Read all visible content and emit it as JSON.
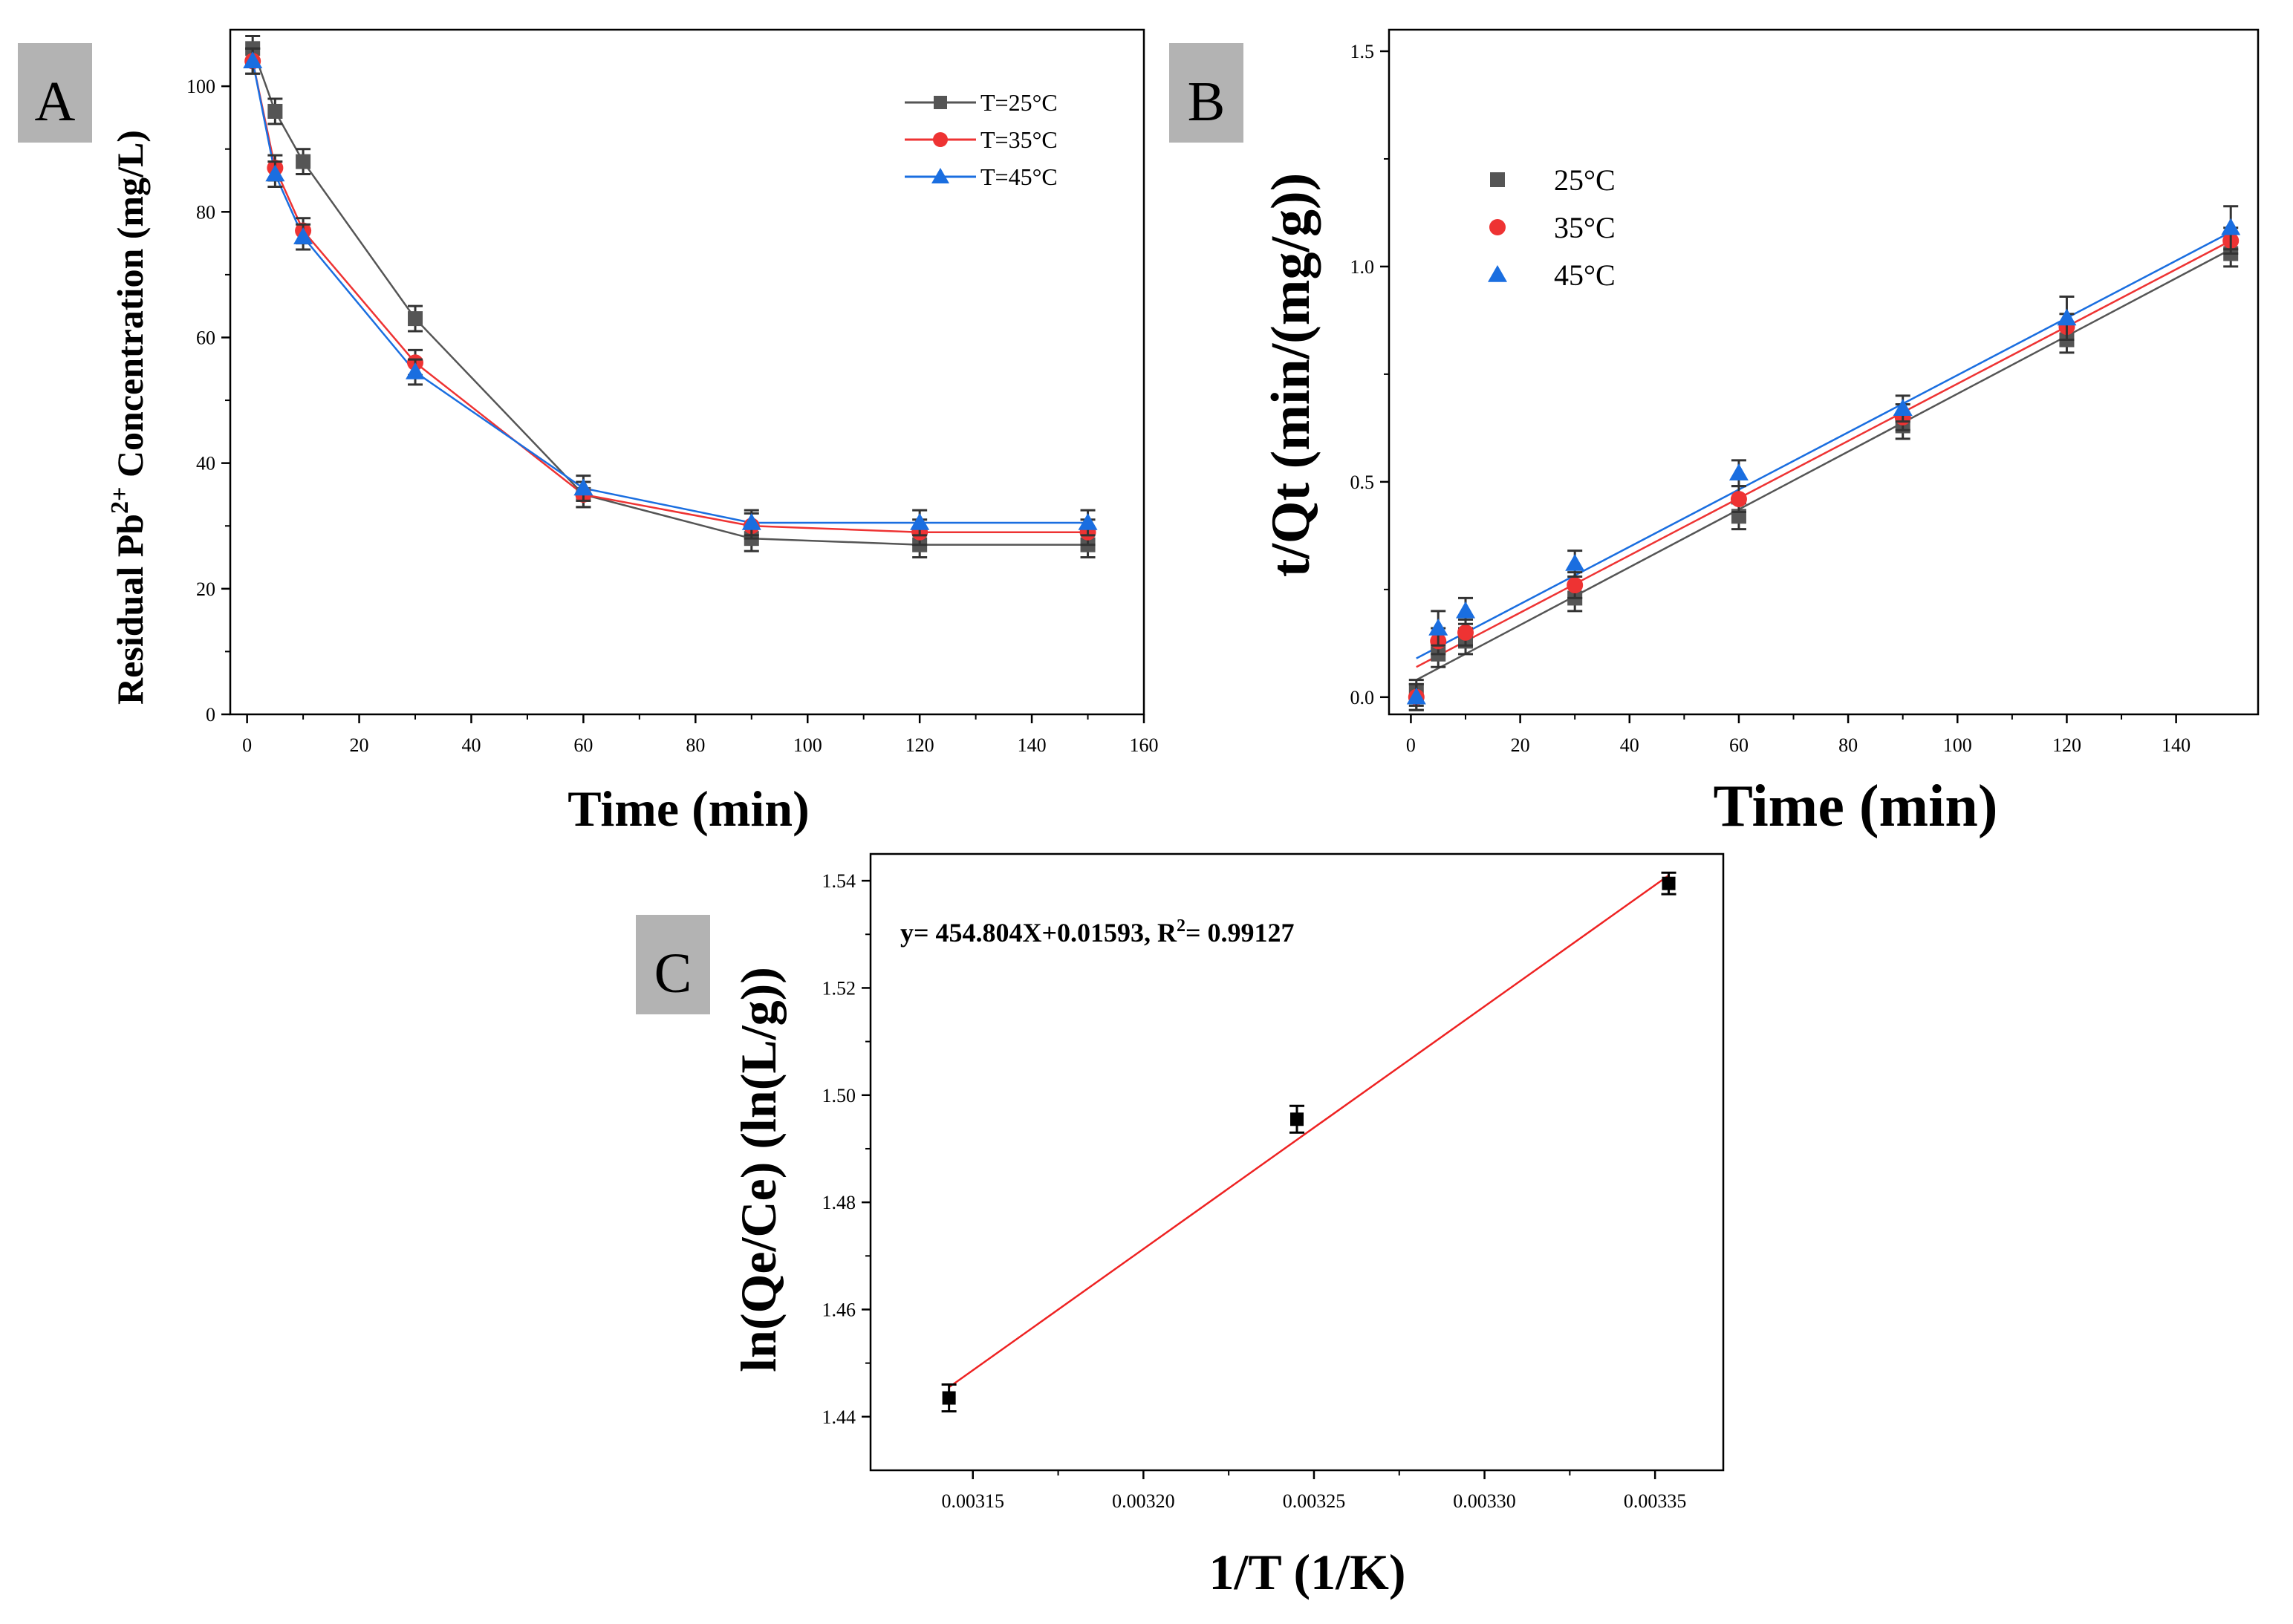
{
  "chart_data": [
    {
      "panel": "A",
      "type": "line",
      "xlabel": "Time (min)",
      "ylabel_main": "Residual Pb",
      "ylabel_sup": "2+",
      "ylabel_rest": " Concentration (mg/L)",
      "xlim": [
        -3,
        160
      ],
      "ylim": [
        0,
        109
      ],
      "xticks": [
        0,
        20,
        40,
        60,
        80,
        100,
        120,
        140,
        160
      ],
      "yticks": [
        0,
        20,
        40,
        60,
        80,
        100
      ],
      "x": [
        1,
        5,
        10,
        30,
        60,
        90,
        120,
        150
      ],
      "series": [
        {
          "name": "T=25°C",
          "color": "#555555",
          "marker": "square",
          "values": [
            106,
            96,
            88,
            63,
            35,
            28,
            27,
            27
          ],
          "errors": [
            2,
            2,
            2,
            2,
            2,
            2,
            2,
            2
          ]
        },
        {
          "name": "T=35°C",
          "color": "#ee3333",
          "marker": "circle",
          "values": [
            104,
            87,
            77,
            56,
            35,
            30,
            29,
            29
          ],
          "errors": [
            2,
            2,
            2,
            2,
            2,
            2,
            2,
            2
          ]
        },
        {
          "name": "T=45°C",
          "color": "#1a6ee0",
          "marker": "triangle",
          "values": [
            104,
            86,
            76,
            54.5,
            36,
            30.5,
            30.5,
            30.5
          ],
          "errors": [
            2,
            2,
            2,
            2,
            2,
            2,
            2,
            2
          ]
        }
      ]
    },
    {
      "panel": "B",
      "type": "scatter",
      "xlabel": "Time (min)",
      "ylabel": "t/Qt (min/(mg/g))",
      "xlim": [
        -4,
        155
      ],
      "ylim": [
        -0.04,
        1.55
      ],
      "xticks": [
        0,
        20,
        40,
        60,
        80,
        100,
        120,
        140
      ],
      "yticks": [
        "0.0",
        "0.5",
        "1.0",
        "1.5"
      ],
      "x": [
        1,
        5,
        10,
        30,
        60,
        90,
        120,
        150
      ],
      "series": [
        {
          "name": "25°C",
          "color": "#555555",
          "marker": "square",
          "values": [
            0.01,
            0.1,
            0.13,
            0.23,
            0.42,
            0.63,
            0.83,
            1.03
          ],
          "errors": [
            0.03,
            0.03,
            0.03,
            0.03,
            0.03,
            0.03,
            0.03,
            0.03
          ],
          "fit": [
            0.04,
            1.04
          ]
        },
        {
          "name": "35°C",
          "color": "#ee3333",
          "marker": "circle",
          "values": [
            0.0,
            0.13,
            0.15,
            0.26,
            0.46,
            0.65,
            0.86,
            1.06
          ],
          "errors": [
            0.03,
            0.03,
            0.03,
            0.03,
            0.03,
            0.03,
            0.03,
            0.03
          ],
          "fit": [
            0.07,
            1.06
          ]
        },
        {
          "name": "45°C",
          "color": "#1a6ee0",
          "marker": "triangle",
          "values": [
            0.0,
            0.16,
            0.2,
            0.31,
            0.52,
            0.67,
            0.88,
            1.09
          ],
          "errors": [
            0.03,
            0.04,
            0.03,
            0.03,
            0.03,
            0.03,
            0.05,
            0.05
          ],
          "fit": [
            0.09,
            1.08
          ]
        }
      ]
    },
    {
      "panel": "C",
      "type": "scatter",
      "xlabel": "1/T (1/K)",
      "ylabel": "ln(Qe/Ce) (ln(L/g))",
      "xlim": [
        0.00312,
        0.00337
      ],
      "ylim": [
        1.43,
        1.545
      ],
      "xticks": [
        "0.00315",
        "0.00320",
        "0.00325",
        "0.00330",
        "0.00335"
      ],
      "yticks": [
        "1.44",
        "1.46",
        "1.48",
        "1.50",
        "1.52",
        "1.54"
      ],
      "x": [
        0.003143,
        0.003245,
        0.003354
      ],
      "values": [
        1.4435,
        1.4955,
        1.5395
      ],
      "errors": [
        0.0025,
        0.0025,
        0.002
      ],
      "fit_x": [
        0.003143,
        0.003354
      ],
      "fit_y": [
        1.4455,
        1.541
      ],
      "fit_color": "#ee2222",
      "equation_main": "y= 454.804X+0.01593, R",
      "equation_sup": "2",
      "equation_rest": "= 0.99127"
    }
  ],
  "panels": {
    "a": {
      "tag": "A"
    },
    "b": {
      "tag": "B"
    },
    "c": {
      "tag": "C"
    }
  }
}
